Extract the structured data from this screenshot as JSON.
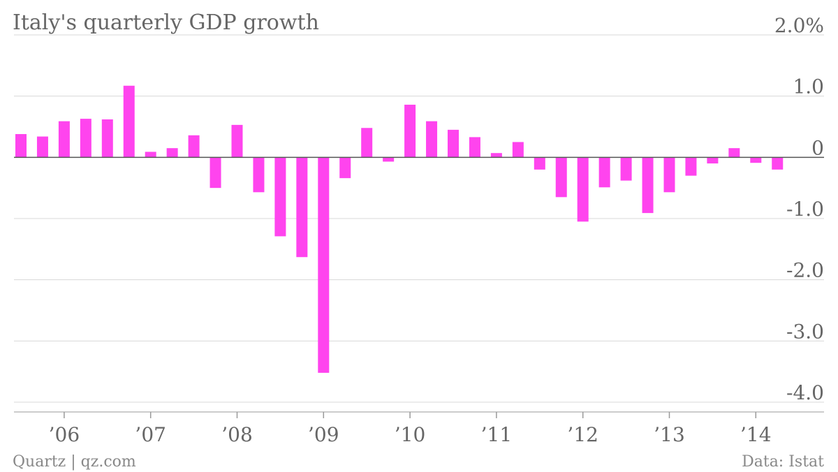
{
  "chart_data": {
    "type": "bar",
    "title": "Italy's quarterly GDP growth",
    "y_unit_label": "2.0%",
    "ylim": [
      -4.0,
      2.0
    ],
    "y_ticks": [
      {
        "value": 2.0,
        "label": "2.0%"
      },
      {
        "value": 1.0,
        "label": "1.0"
      },
      {
        "value": 0,
        "label": "0"
      },
      {
        "value": -1.0,
        "label": "-1.0"
      },
      {
        "value": -2.0,
        "label": "-2.0"
      },
      {
        "value": -3.0,
        "label": "-3.0"
      },
      {
        "value": -4.0,
        "label": "-4.0"
      }
    ],
    "x_tick_labels": [
      "’06",
      "’07",
      "’08",
      "’09",
      "’10",
      "’11",
      "’12",
      "’13",
      "’14"
    ],
    "series": [
      {
        "color": "#ff44ee",
        "values": [
          0.38,
          0.34,
          0.59,
          0.63,
          0.62,
          1.17,
          0.09,
          0.15,
          0.36,
          -0.5,
          0.53,
          -0.57,
          -1.29,
          -1.63,
          -3.52,
          -0.34,
          0.48,
          -0.07,
          0.86,
          0.59,
          0.45,
          0.33,
          0.07,
          0.25,
          -0.2,
          -0.65,
          -1.05,
          -0.49,
          -0.38,
          -0.91,
          -0.57,
          -0.3,
          -0.1,
          0.15,
          -0.09,
          -0.2
        ]
      }
    ],
    "grid": true,
    "legend": "none"
  },
  "footer": {
    "source_left": "Quartz | qz.com",
    "source_right": "Data: Istat"
  }
}
